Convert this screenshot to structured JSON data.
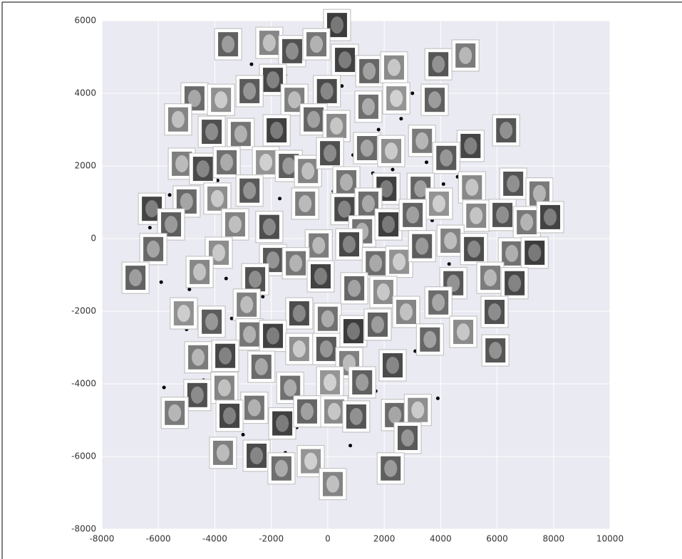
{
  "chart_data": {
    "type": "scatter",
    "x": [
      -3800,
      -2700,
      -1500,
      -900,
      -200,
      500,
      1200,
      1800,
      2600,
      3000,
      -4500,
      -3300,
      -2200,
      -1100,
      300,
      900,
      1600,
      2300,
      3500,
      4100,
      -5600,
      -4800,
      -3900,
      -2500,
      -1700,
      -600,
      200,
      1000,
      2100,
      2900,
      3700,
      4600,
      -6300,
      -5200,
      -4200,
      -3000,
      -1900,
      -300,
      700,
      1500,
      2400,
      3300,
      4300,
      5500,
      -5900,
      -4900,
      -3600,
      -2300,
      -1300,
      100,
      1300,
      2700,
      3800,
      -5000,
      -3400,
      -2000,
      -800,
      600,
      1900,
      3100,
      -5800,
      -4400,
      -2900,
      -1400,
      400,
      1700,
      3900,
      -3000,
      -1100,
      800,
      -1500
    ],
    "y": [
      5100,
      4800,
      4500,
      3600,
      3400,
      4200,
      3800,
      3000,
      3300,
      4000,
      2600,
      2900,
      2500,
      2200,
      2700,
      2300,
      1800,
      1900,
      2100,
      1500,
      1200,
      900,
      1600,
      1400,
      1100,
      800,
      1300,
      600,
      700,
      1000,
      500,
      1700,
      300,
      100,
      -200,
      0,
      -400,
      -600,
      -300,
      -100,
      -500,
      200,
      -700,
      -900,
      -1200,
      -1400,
      -1100,
      -1600,
      -1800,
      -1300,
      -1500,
      -1700,
      -1900,
      -2500,
      -2200,
      -2700,
      -2400,
      -2800,
      -2600,
      -3100,
      -4100,
      -3900,
      -4300,
      -4500,
      -4600,
      -4200,
      -4400,
      -5400,
      -5200,
      -5700,
      -5900
    ],
    "color": "#000000",
    "images": {
      "x": [
        330,
        -3530,
        -2070,
        -1260,
        -400,
        610,
        1470,
        2350,
        3920,
        4880,
        -1940,
        -4720,
        -3780,
        -2770,
        -1180,
        -30,
        1440,
        2430,
        3790,
        -5300,
        -4110,
        -3080,
        -1810,
        -500,
        310,
        6320,
        3340,
        5060,
        1390,
        2250,
        4200,
        -5170,
        -4420,
        -3580,
        -2190,
        -1380,
        -700,
        80,
        660,
        2080,
        3290,
        5110,
        6570,
        7500,
        -6230,
        -5000,
        -3910,
        -2770,
        -800,
        590,
        1440,
        3940,
        -5550,
        -3280,
        -2070,
        1220,
        2150,
        3010,
        5260,
        6190,
        7050,
        7880,
        -6180,
        -3860,
        -1940,
        -320,
        760,
        1700,
        2530,
        3340,
        4350,
        5180,
        6520,
        7330,
        -6810,
        -4540,
        -2570,
        -1130,
        -250,
        940,
        1970,
        4450,
        5760,
        6620,
        3920,
        -5100,
        -4110,
        -2870,
        -1010,
        0,
        910,
        1770,
        2780,
        5910,
        -2770,
        -1940,
        3620,
        4800,
        5940,
        -4590,
        -3630,
        -2350,
        -1010,
        -50,
        760,
        2300,
        -1330,
        80,
        1220,
        -3660,
        -4620,
        -2600,
        -1610,
        -730,
        230,
        1010,
        -5420,
        -3480,
        2380,
        3190,
        2830,
        -3710,
        -2520,
        -1640,
        -600,
        2230,
        180
      ],
      "y": [
        5880,
        5350,
        5390,
        5160,
        5350,
        4920,
        4610,
        4710,
        4800,
        5040,
        4370,
        3860,
        3820,
        4060,
        3820,
        4060,
        3630,
        3860,
        3820,
        3280,
        2940,
        2880,
        2980,
        3280,
        3100,
        2980,
        2690,
        2550,
        2490,
        2410,
        2220,
        2060,
        1920,
        2100,
        2100,
        2000,
        1860,
        2350,
        1550,
        1370,
        1370,
        1410,
        1510,
        1240,
        820,
        1020,
        1100,
        1320,
        960,
        810,
        960,
        960,
        390,
        390,
        320,
        200,
        390,
        650,
        630,
        650,
        450,
        590,
        -290,
        -390,
        -590,
        -190,
        -160,
        -680,
        -640,
        -210,
        -60,
        -290,
        -410,
        -390,
        -1080,
        -920,
        -1120,
        -680,
        -1040,
        -1370,
        -1470,
        -1230,
        -1080,
        -1230,
        -1760,
        -2060,
        -2290,
        -1820,
        -2060,
        -2210,
        -2550,
        -2370,
        -2020,
        -2020,
        -2640,
        -2680,
        -2780,
        -2570,
        -3080,
        -3270,
        -3230,
        -3530,
        -3040,
        -3040,
        -3430,
        -3490,
        -4110,
        -3960,
        -3960,
        -4110,
        -4310,
        -4660,
        -5090,
        -4760,
        -4760,
        -4900,
        -4800,
        -4880,
        -4860,
        -4720,
        -5490,
        -5900,
        -5980,
        -6330,
        -6130,
        -6330,
        -6760
      ]
    },
    "xlim": [
      -8000,
      10000
    ],
    "ylim": [
      -8000,
      6000
    ],
    "xticks": [
      -8000,
      -6000,
      -4000,
      -2000,
      0,
      2000,
      4000,
      6000,
      8000,
      10000
    ],
    "yticks": [
      -8000,
      -6000,
      -4000,
      -2000,
      0,
      2000,
      4000,
      6000
    ],
    "grid": true
  }
}
